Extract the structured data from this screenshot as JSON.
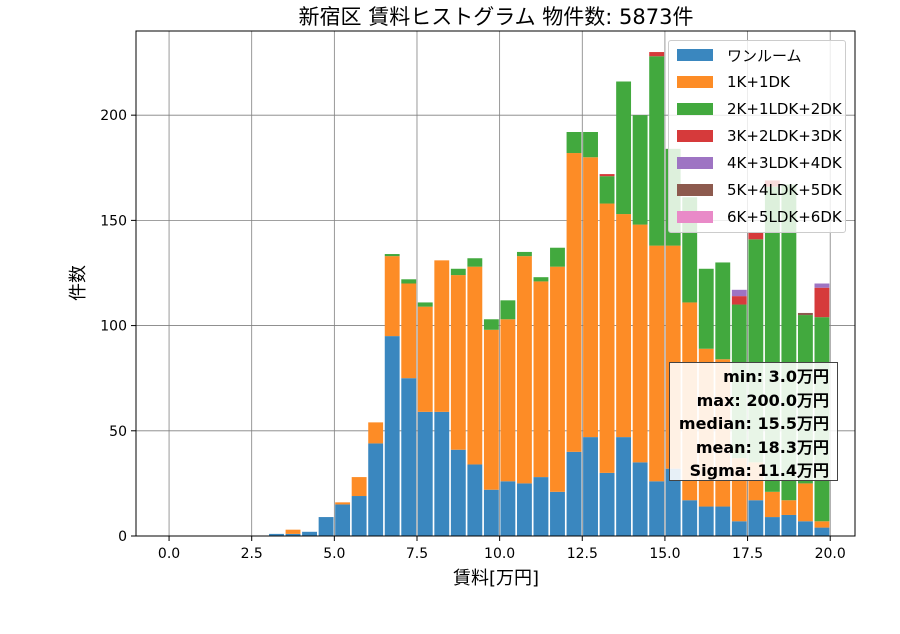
{
  "chart_data": {
    "type": "bar",
    "stacked": true,
    "title": "新宿区 賃料ヒストグラム 物件数: 5873件",
    "xlabel": "賃料[万円]",
    "ylabel": "件数",
    "xlim": [
      -1.0,
      20.75
    ],
    "ylim": [
      0,
      240
    ],
    "grid": true,
    "legend_position": "top-right",
    "xticks": [
      0.0,
      2.5,
      5.0,
      7.5,
      10.0,
      12.5,
      15.0,
      17.5,
      20.0
    ],
    "xtick_labels": [
      "0.0",
      "2.5",
      "5.0",
      "7.5",
      "10.0",
      "12.5",
      "15.0",
      "17.5",
      "20.0"
    ],
    "yticks": [
      0,
      50,
      100,
      150,
      200
    ],
    "ytick_labels": [
      "0",
      "50",
      "100",
      "150",
      "200"
    ],
    "bin_width": 0.5,
    "bar_width_fraction": 0.9,
    "x": [
      3.0,
      3.5,
      4.0,
      4.5,
      5.0,
      5.5,
      6.0,
      6.5,
      7.0,
      7.5,
      8.0,
      8.5,
      9.0,
      9.5,
      10.0,
      10.5,
      11.0,
      11.5,
      12.0,
      12.5,
      13.0,
      13.5,
      14.0,
      14.5,
      15.0,
      15.5,
      16.0,
      16.5,
      17.0,
      17.5,
      18.0,
      18.5,
      19.0,
      19.5
    ],
    "series": [
      {
        "name": "ワンルーム",
        "color": "#3a87bf",
        "values": [
          1,
          1,
          2,
          9,
          15,
          19,
          44,
          95,
          75,
          59,
          59,
          41,
          34,
          22,
          26,
          25,
          28,
          21,
          40,
          47,
          30,
          47,
          35,
          26,
          32,
          17,
          14,
          14,
          7,
          17,
          9,
          10,
          7,
          4
        ]
      },
      {
        "name": "1K+1DK",
        "color": "#fd8c26",
        "values": [
          0,
          2,
          0,
          0,
          1,
          9,
          10,
          38,
          45,
          50,
          72,
          83,
          94,
          76,
          77,
          108,
          93,
          107,
          142,
          133,
          128,
          106,
          113,
          112,
          106,
          94,
          75,
          70,
          30,
          18,
          12,
          7,
          18,
          3
        ]
      },
      {
        "name": "2K+1LDK+2DK",
        "color": "#42a93e",
        "values": [
          0,
          0,
          0,
          0,
          0,
          0,
          0,
          1,
          2,
          2,
          0,
          3,
          4,
          5,
          9,
          2,
          2,
          9,
          10,
          12,
          13,
          63,
          52,
          90,
          46,
          50,
          38,
          46,
          73,
          106,
          145,
          150,
          80,
          97
        ]
      },
      {
        "name": "3K+2LDK+3DK",
        "color": "#d63a3b",
        "values": [
          0,
          0,
          0,
          0,
          0,
          0,
          0,
          0,
          0,
          0,
          0,
          0,
          0,
          0,
          0,
          0,
          0,
          0,
          0,
          0,
          1,
          0,
          0,
          2,
          0,
          0,
          0,
          0,
          4,
          3,
          3,
          0,
          0,
          14
        ]
      },
      {
        "name": "4K+3LDK+4DK",
        "color": "#9e74c3",
        "values": [
          0,
          0,
          0,
          0,
          0,
          0,
          0,
          0,
          0,
          0,
          0,
          0,
          0,
          0,
          0,
          0,
          0,
          0,
          0,
          0,
          0,
          0,
          0,
          0,
          0,
          0,
          0,
          0,
          3,
          0,
          0,
          0,
          0,
          2
        ]
      },
      {
        "name": "5K+4LDK+5DK",
        "color": "#8d5a4e",
        "values": [
          0,
          0,
          0,
          0,
          0,
          0,
          0,
          0,
          0,
          0,
          0,
          0,
          0,
          0,
          0,
          0,
          0,
          0,
          0,
          0,
          0,
          0,
          0,
          0,
          0,
          0,
          0,
          0,
          0,
          0,
          0,
          0,
          1,
          0
        ]
      },
      {
        "name": "6K+5LDK+6DK",
        "color": "#e98ac8",
        "values": [
          0,
          0,
          0,
          0,
          0,
          0,
          0,
          0,
          0,
          0,
          0,
          0,
          0,
          0,
          0,
          0,
          0,
          0,
          0,
          0,
          0,
          0,
          0,
          0,
          0,
          0,
          0,
          0,
          0,
          0,
          0,
          0,
          0,
          0
        ]
      }
    ]
  },
  "stats": {
    "min": "min: 3.0万円",
    "max": "max: 200.0万円",
    "median": "median: 15.5万円",
    "mean": "mean: 18.3万円",
    "sigma": "Sigma: 11.4万円"
  }
}
